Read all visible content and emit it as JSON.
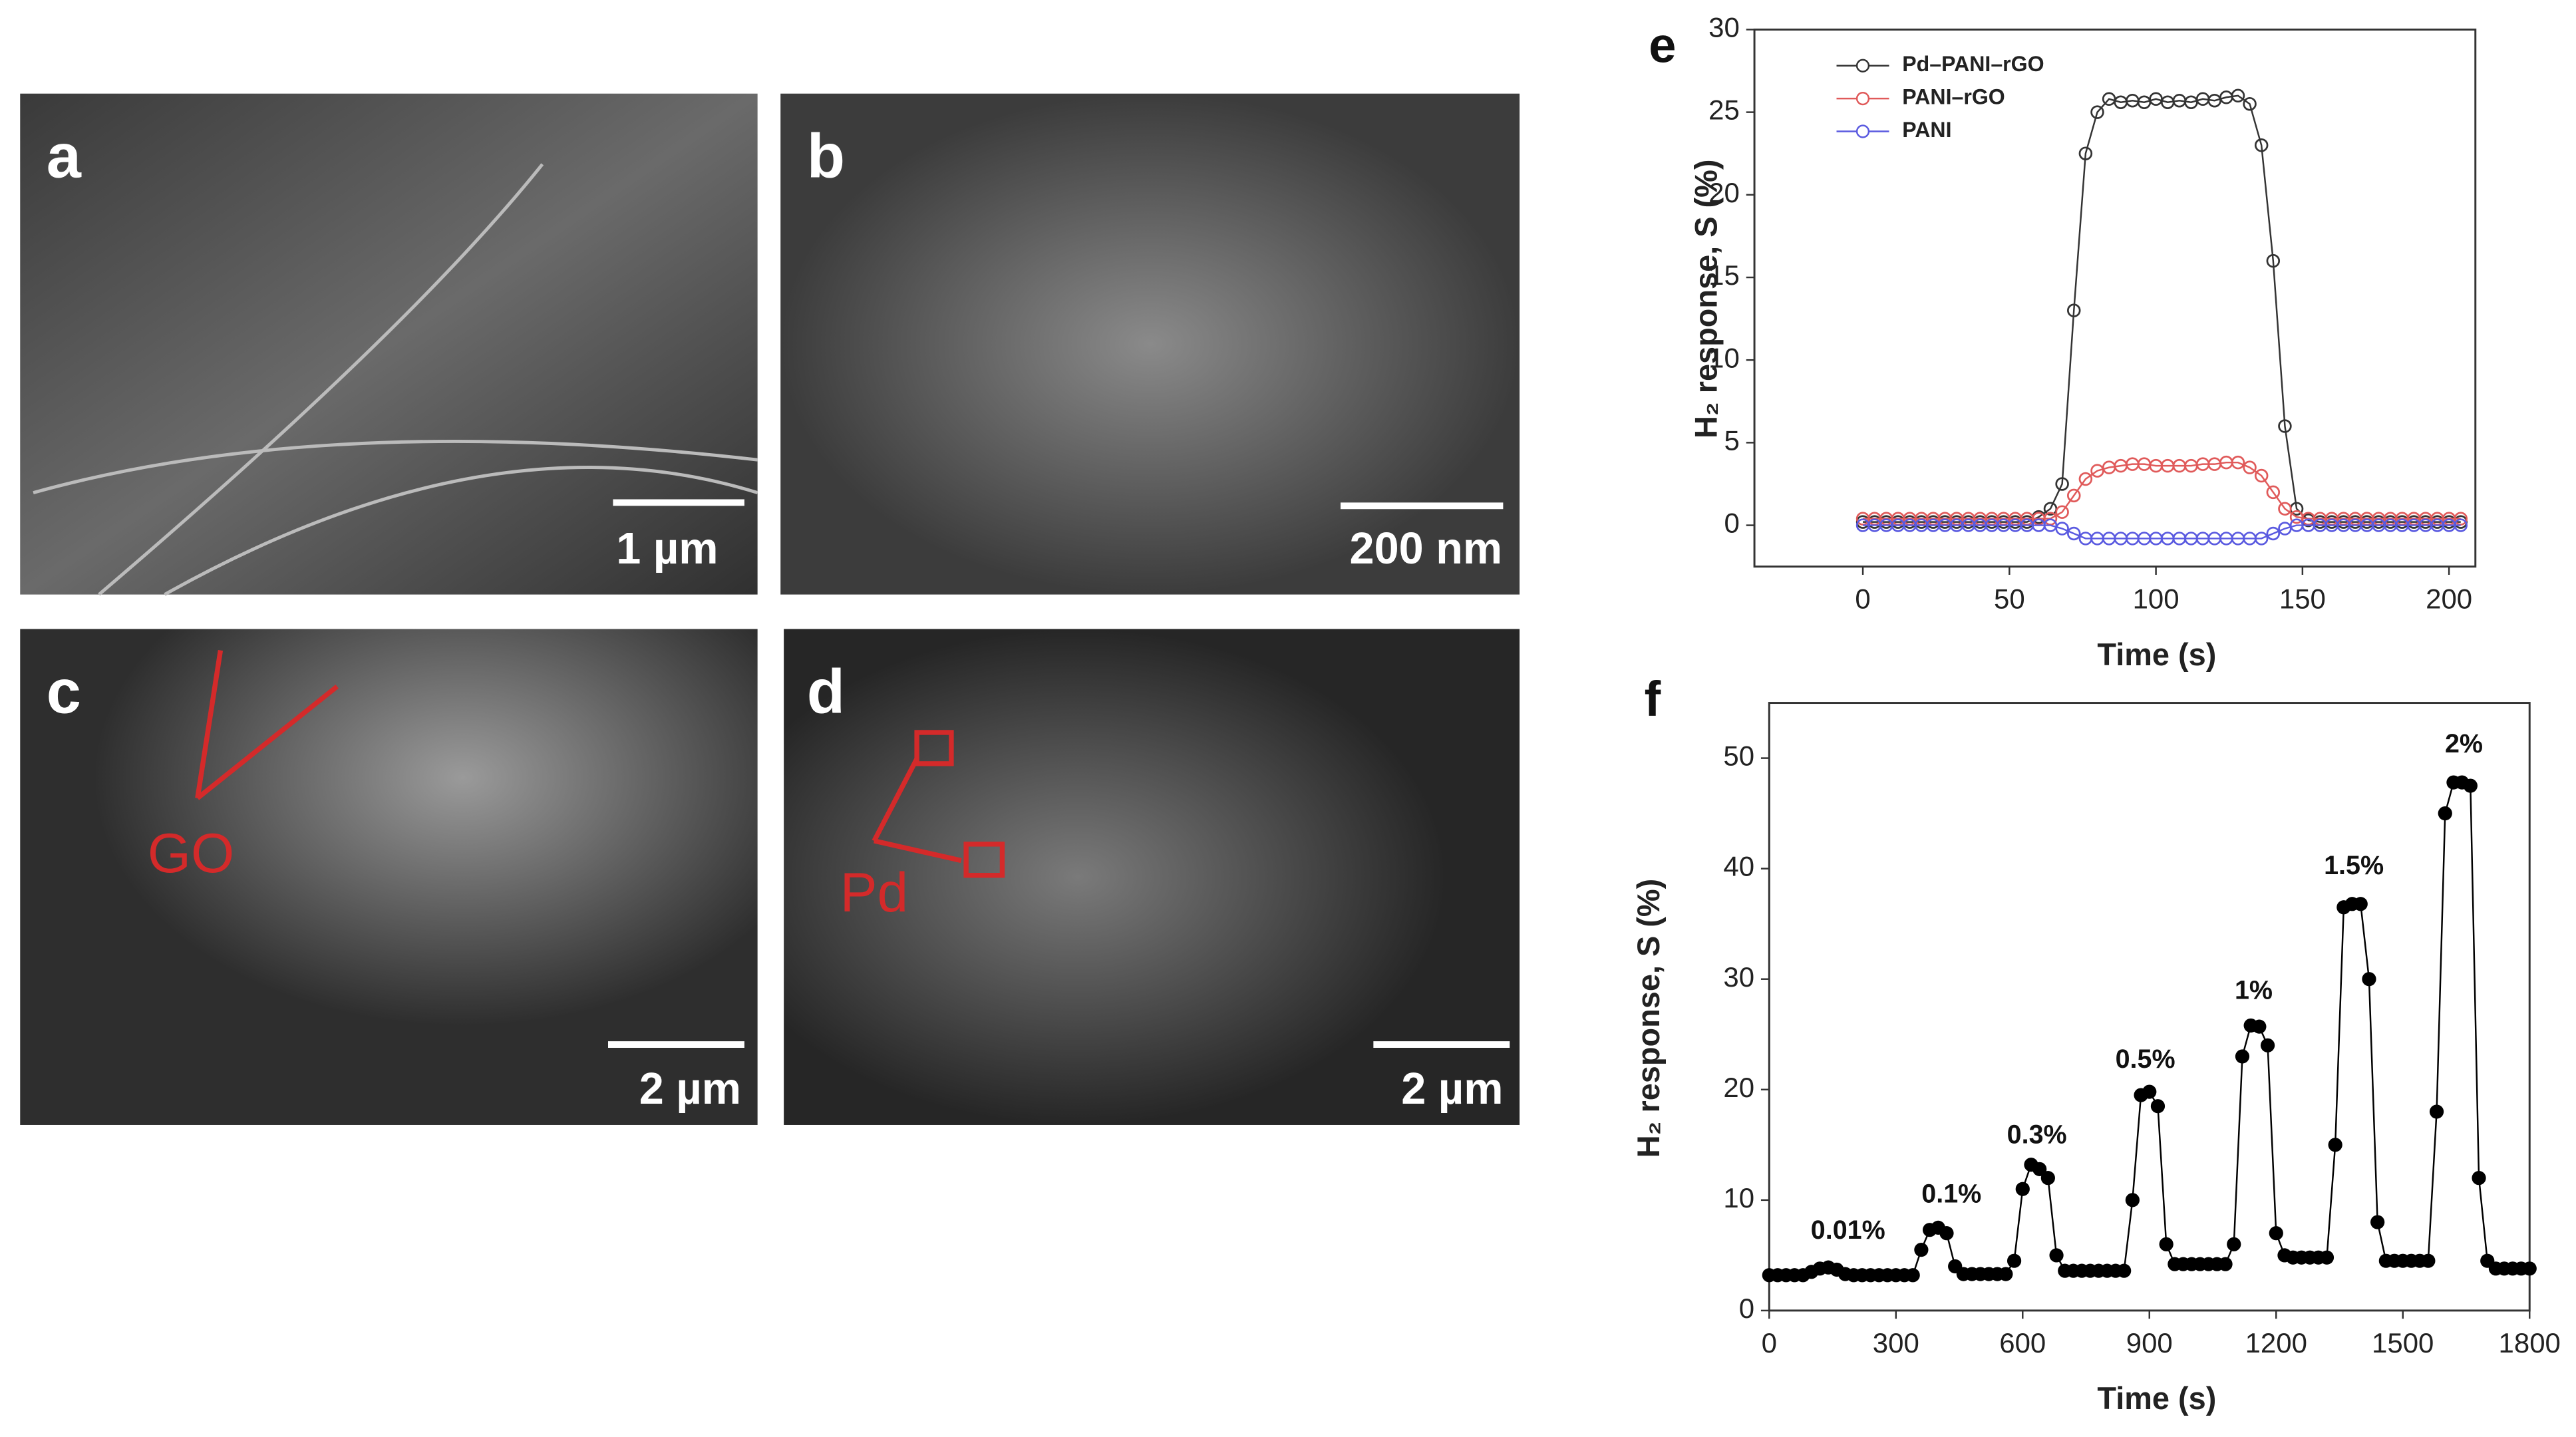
{
  "figure": {
    "panels": [
      {
        "label": "a",
        "scale_bar": "1 µm"
      },
      {
        "label": "b",
        "scale_bar": "200 nm"
      },
      {
        "label": "c",
        "scale_bar": "2 µm",
        "annotation": "GO"
      },
      {
        "label": "d",
        "scale_bar": "2 µm",
        "annotation": "Pd"
      }
    ]
  },
  "chart_data": [
    {
      "type": "line",
      "label": "e",
      "xlabel": "Time (s)",
      "ylabel": "H₂ response, S (%)",
      "xlim": [
        -37,
        209
      ],
      "ylim": [
        -2.5,
        30
      ],
      "xticks": [
        0,
        50,
        100,
        150,
        200
      ],
      "yticks": [
        0,
        5,
        10,
        15,
        20,
        25,
        30
      ],
      "legend": "upper left",
      "markers": "open",
      "x": [
        0,
        4,
        8,
        12,
        16,
        20,
        24,
        28,
        32,
        36,
        40,
        44,
        48,
        52,
        56,
        60,
        64,
        68,
        72,
        76,
        80,
        84,
        88,
        92,
        96,
        100,
        104,
        108,
        112,
        116,
        120,
        124,
        128,
        132,
        136,
        140,
        144,
        148,
        152,
        156,
        160,
        164,
        168,
        172,
        176,
        180,
        184,
        188,
        192,
        196,
        200,
        204
      ],
      "series": [
        {
          "name": "Pd–PANI–rGO",
          "color": "#333333",
          "values": [
            0.2,
            0.2,
            0.2,
            0.2,
            0.2,
            0.2,
            0.2,
            0.2,
            0.2,
            0.2,
            0.2,
            0.2,
            0.2,
            0.2,
            0.2,
            0.5,
            1.0,
            2.5,
            13,
            22.5,
            25,
            25.8,
            25.6,
            25.7,
            25.6,
            25.8,
            25.6,
            25.7,
            25.6,
            25.8,
            25.7,
            25.9,
            26,
            25.5,
            23,
            16,
            6,
            1.0,
            0.3,
            0.2,
            0.2,
            0.2,
            0.2,
            0.2,
            0.2,
            0.2,
            0.2,
            0.2,
            0.2,
            0.2,
            0.2,
            0.2
          ]
        },
        {
          "name": "PANI–rGO",
          "color": "#e05a5a",
          "values": [
            0.4,
            0.4,
            0.4,
            0.4,
            0.4,
            0.4,
            0.4,
            0.4,
            0.4,
            0.4,
            0.4,
            0.4,
            0.4,
            0.4,
            0.4,
            0.4,
            0.4,
            0.8,
            1.8,
            2.8,
            3.3,
            3.5,
            3.6,
            3.7,
            3.7,
            3.6,
            3.6,
            3.6,
            3.6,
            3.7,
            3.7,
            3.8,
            3.8,
            3.5,
            3.0,
            2.0,
            1.0,
            0.5,
            0.4,
            0.4,
            0.4,
            0.4,
            0.4,
            0.4,
            0.4,
            0.4,
            0.4,
            0.4,
            0.4,
            0.4,
            0.4,
            0.4
          ]
        },
        {
          "name": "PANI",
          "color": "#5a5ae0",
          "values": [
            0,
            0,
            0,
            0,
            0,
            0,
            0,
            0,
            0,
            0,
            0,
            0,
            0,
            0,
            0,
            0,
            0,
            -0.2,
            -0.5,
            -0.8,
            -0.8,
            -0.8,
            -0.8,
            -0.8,
            -0.8,
            -0.8,
            -0.8,
            -0.8,
            -0.8,
            -0.8,
            -0.8,
            -0.8,
            -0.8,
            -0.8,
            -0.8,
            -0.5,
            -0.2,
            0,
            0,
            0,
            0,
            0,
            0,
            0,
            0,
            0,
            0,
            0,
            0,
            0,
            0,
            0
          ]
        }
      ]
    },
    {
      "type": "line",
      "label": "f",
      "xlabel": "Time (s)",
      "ylabel": "H₂ response, S (%)",
      "xlim": [
        0,
        1800
      ],
      "ylim": [
        0,
        55
      ],
      "xticks": [
        0,
        300,
        600,
        900,
        1200,
        1500,
        1800
      ],
      "yticks": [
        0,
        10,
        20,
        30,
        40,
        50
      ],
      "markers": "filled",
      "color": "#000000",
      "annotations": [
        "0.01%",
        "0.1%",
        "0.3%",
        "0.5%",
        "1%",
        "1.5%",
        "2%"
      ],
      "x": [
        0,
        20,
        40,
        60,
        80,
        100,
        120,
        140,
        160,
        180,
        200,
        220,
        240,
        260,
        280,
        300,
        320,
        340,
        360,
        380,
        400,
        420,
        440,
        460,
        480,
        500,
        520,
        540,
        560,
        580,
        600,
        620,
        640,
        660,
        680,
        700,
        720,
        740,
        760,
        780,
        800,
        820,
        840,
        860,
        880,
        900,
        920,
        940,
        960,
        980,
        1000,
        1020,
        1040,
        1060,
        1080,
        1100,
        1120,
        1140,
        1160,
        1180,
        1200,
        1220,
        1240,
        1260,
        1280,
        1300,
        1320,
        1340,
        1360,
        1380,
        1400,
        1420,
        1440,
        1460,
        1480,
        1500,
        1520,
        1540,
        1560,
        1580,
        1600,
        1620,
        1640,
        1660,
        1680,
        1700,
        1720,
        1740,
        1760,
        1780,
        1800
      ],
      "values": [
        3.2,
        3.2,
        3.2,
        3.2,
        3.2,
        3.5,
        3.8,
        3.9,
        3.7,
        3.3,
        3.2,
        3.2,
        3.2,
        3.2,
        3.2,
        3.2,
        3.2,
        3.2,
        5.5,
        7.3,
        7.5,
        7.0,
        4.0,
        3.3,
        3.3,
        3.3,
        3.3,
        3.3,
        3.3,
        4.5,
        11,
        13.2,
        12.8,
        12,
        5,
        3.6,
        3.6,
        3.6,
        3.6,
        3.6,
        3.6,
        3.6,
        3.6,
        10,
        19.5,
        19.8,
        18.5,
        6,
        4.2,
        4.2,
        4.2,
        4.2,
        4.2,
        4.2,
        4.2,
        6,
        23,
        25.8,
        25.7,
        24,
        7,
        5,
        4.8,
        4.8,
        4.8,
        4.8,
        4.8,
        15,
        36.5,
        36.8,
        36.8,
        30,
        8,
        4.5,
        4.5,
        4.5,
        4.5,
        4.5,
        4.5,
        18,
        45,
        47.8,
        47.8,
        47.5,
        12,
        4.5,
        3.8,
        3.8,
        3.8,
        3.8,
        3.8
      ]
    }
  ]
}
